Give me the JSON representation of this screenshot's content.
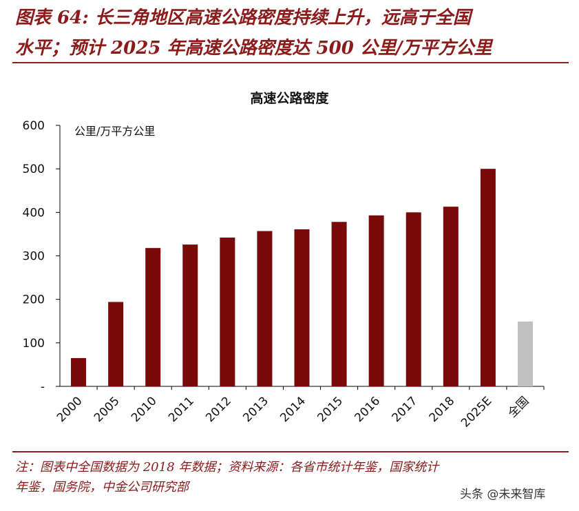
{
  "figure": {
    "title_line1": "图表 64: 长三角地区高速公路密度持续上升，远高于全国",
    "title_line2": "水平；预计 2025 年高速公路密度达 500 公里/万平方公里"
  },
  "footnote": {
    "line1": "注：图表中全国数据为 2018 年数据；资料来源：各省市统计年鉴，国家统计",
    "line2": "年鉴，国务院，中金公司研究部"
  },
  "watermark": "头条 @未来智库",
  "colors": {
    "title": "#8b1a1a",
    "bar": "#7a0a0a",
    "national_bar": "#c0c0c0",
    "axis": "#000000"
  },
  "chart_data": {
    "type": "bar",
    "title": "高速公路密度",
    "ylabel": "公里/万平方公里",
    "ylim": [
      0,
      600
    ],
    "yticks": [
      600,
      500,
      400,
      300,
      200,
      100,
      0
    ],
    "ytick_labels": [
      "600",
      "500",
      "400",
      "300",
      "200",
      "100",
      "-"
    ],
    "categories": [
      "2000",
      "2005",
      "2010",
      "2011",
      "2012",
      "2013",
      "2014",
      "2015",
      "2016",
      "2017",
      "2018",
      "2025E",
      "全国"
    ],
    "values": [
      65,
      194,
      318,
      326,
      342,
      357,
      361,
      378,
      393,
      400,
      413,
      500,
      149
    ],
    "highlight_category": "全国",
    "grid": false,
    "legend": "none"
  }
}
